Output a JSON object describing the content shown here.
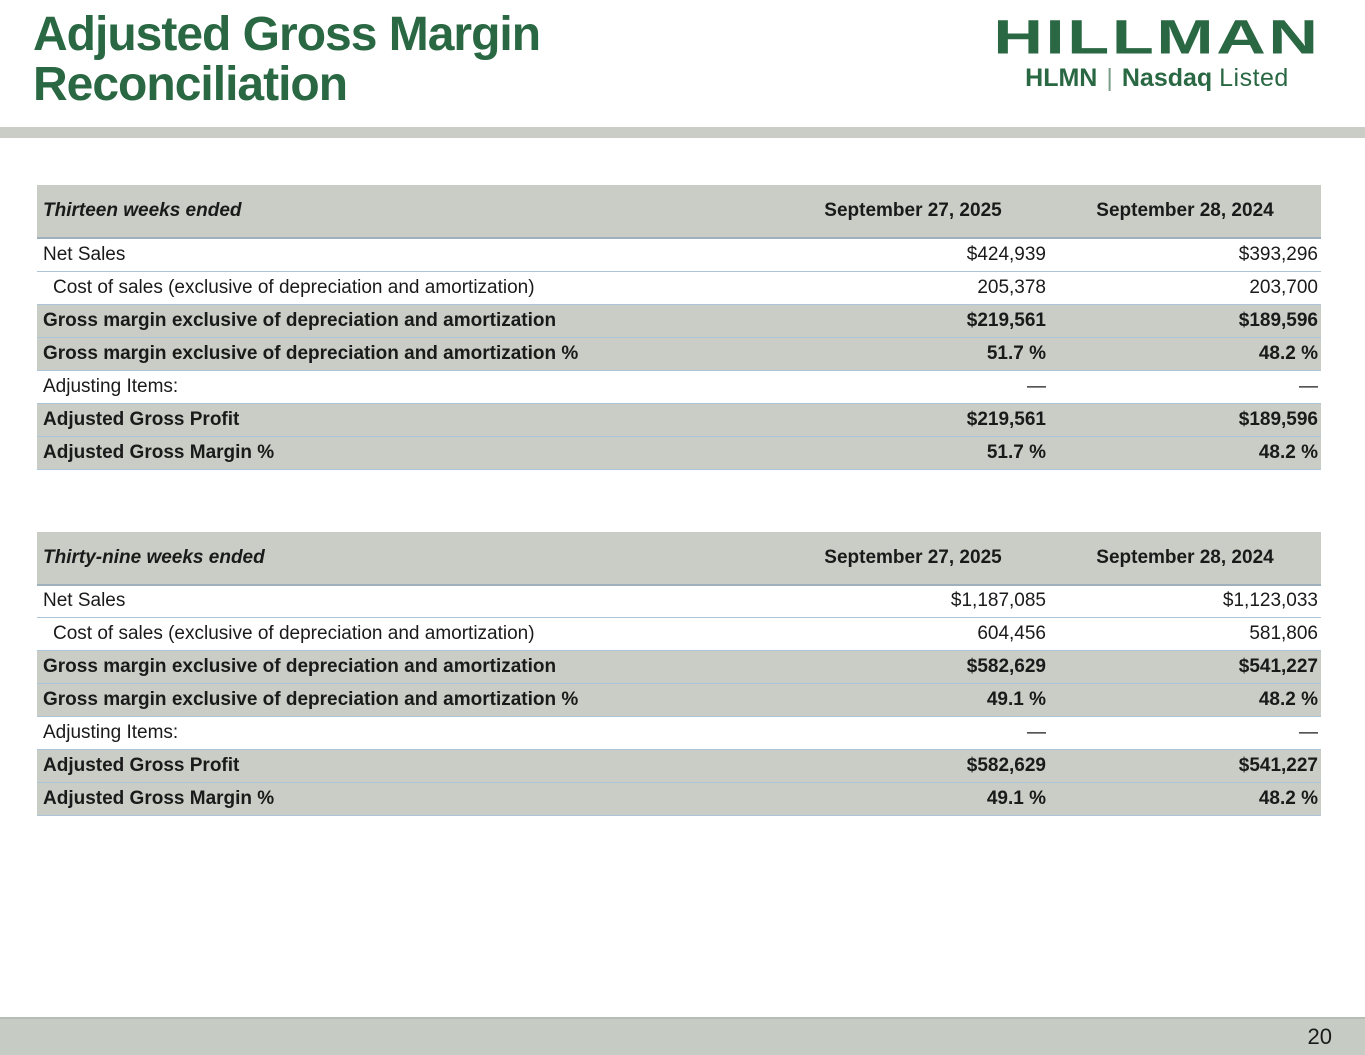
{
  "header": {
    "title_line1": "Adjusted Gross Margin",
    "title_line2": "Reconciliation"
  },
  "logo": {
    "brand": "HILLMAN",
    "ticker": "HLMN",
    "pipe": "|",
    "exchange_bold": "Nasdaq",
    "exchange_light": "Listed"
  },
  "colors": {
    "brand-green": "#2a6843",
    "shade-gray": "#c9cdc5",
    "footer-gray": "#c6cbc4",
    "row-border": "#abc6d9",
    "header-border": "#9db0bc"
  },
  "tables": [
    {
      "period_label": "Thirteen weeks ended",
      "columns": [
        "September 27, 2025",
        "September 28, 2024"
      ],
      "rows": [
        {
          "label": "Net Sales",
          "values": [
            "$424,939",
            "$393,296"
          ],
          "bold": false,
          "shaded": false,
          "indent": false
        },
        {
          "label": "Cost of sales (exclusive of depreciation and amortization)",
          "values": [
            "205,378",
            "203,700"
          ],
          "bold": false,
          "shaded": false,
          "indent": true
        },
        {
          "label": "Gross margin exclusive of depreciation and amortization",
          "values": [
            "$219,561",
            "$189,596"
          ],
          "bold": true,
          "shaded": true,
          "indent": false
        },
        {
          "label": "Gross margin exclusive of depreciation and amortization %",
          "values": [
            "51.7 %",
            "48.2 %"
          ],
          "bold": true,
          "shaded": true,
          "indent": false
        },
        {
          "label": "Adjusting Items:",
          "values": [
            "—",
            "—"
          ],
          "bold": false,
          "shaded": false,
          "indent": false
        },
        {
          "label": "Adjusted Gross Profit",
          "values": [
            "$219,561",
            "$189,596"
          ],
          "bold": true,
          "shaded": true,
          "indent": false
        },
        {
          "label": "Adjusted Gross Margin %",
          "values": [
            "51.7 %",
            "48.2 %"
          ],
          "bold": true,
          "shaded": true,
          "indent": false
        }
      ]
    },
    {
      "period_label": "Thirty-nine weeks ended",
      "columns": [
        "September 27, 2025",
        "September 28, 2024"
      ],
      "rows": [
        {
          "label": "Net Sales",
          "values": [
            "$1,187,085",
            "$1,123,033"
          ],
          "bold": false,
          "shaded": false,
          "indent": false
        },
        {
          "label": "Cost of sales (exclusive of depreciation and amortization)",
          "values": [
            "604,456",
            "581,806"
          ],
          "bold": false,
          "shaded": false,
          "indent": true
        },
        {
          "label": "Gross margin exclusive of depreciation and amortization",
          "values": [
            "$582,629",
            "$541,227"
          ],
          "bold": true,
          "shaded": true,
          "indent": false
        },
        {
          "label": "Gross margin exclusive of depreciation and amortization %",
          "values": [
            "49.1 %",
            "48.2 %"
          ],
          "bold": true,
          "shaded": true,
          "indent": false
        },
        {
          "label": "Adjusting Items:",
          "values": [
            "—",
            "—"
          ],
          "bold": false,
          "shaded": false,
          "indent": false
        },
        {
          "label": "Adjusted Gross Profit",
          "values": [
            "$582,629",
            "$541,227"
          ],
          "bold": true,
          "shaded": true,
          "indent": false
        },
        {
          "label": "Adjusted Gross Margin %",
          "values": [
            "49.1 %",
            "48.2 %"
          ],
          "bold": true,
          "shaded": true,
          "indent": false
        }
      ]
    }
  ],
  "footer": {
    "page_number": "20"
  }
}
